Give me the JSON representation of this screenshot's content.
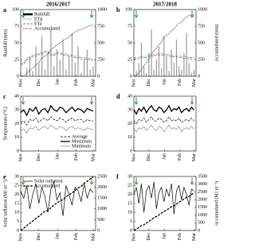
{
  "chart_data": [
    {
      "type": "combo",
      "label": "a",
      "title": "2016/2017",
      "ylabel": "Rainfall (mm)",
      "legend": "upper left",
      "x": [
        0,
        5,
        10,
        15,
        20,
        25,
        30,
        35,
        40,
        45,
        50,
        55,
        60,
        65,
        70,
        75,
        80,
        85,
        90,
        95,
        100,
        105,
        110,
        115,
        120
      ],
      "xlim": [
        0,
        124
      ],
      "xticks": [
        {
          "value": 0,
          "label": "Nov"
        },
        {
          "value": 30,
          "label": "Dec"
        },
        {
          "value": 61,
          "label": "Jan"
        },
        {
          "value": 92,
          "label": "Feb"
        },
        {
          "value": 120,
          "label": "Mar"
        }
      ],
      "ylim": [
        0,
        100
      ],
      "yticks": [
        0,
        25,
        50,
        75,
        100
      ],
      "y2lim": [
        0,
        1000
      ],
      "y2ticks": [
        0,
        250,
        500,
        750,
        1000
      ],
      "series": [
        {
          "name": "Rainfall",
          "mark": "bar",
          "color": "#9a9a9a",
          "values": [
            5,
            0,
            12,
            30,
            8,
            45,
            20,
            60,
            10,
            35,
            70,
            15,
            40,
            25,
            55,
            10,
            30,
            65,
            20,
            45,
            5,
            25,
            40,
            10,
            15
          ]
        },
        {
          "name": "ETp",
          "mark": "line",
          "color": "#3a9e9e",
          "dash": "3 1 1 1",
          "values": [
            20,
            20,
            28,
            28,
            32,
            32,
            35,
            35,
            38,
            38,
            33,
            33,
            36,
            36,
            34,
            34,
            32,
            32,
            30,
            30,
            28,
            28,
            27,
            27,
            26
          ]
        },
        {
          "name": "ETa",
          "mark": "line",
          "color": "#d9261c",
          "dash": "3 1.5",
          "values": [
            18,
            18,
            25,
            25,
            30,
            30,
            33,
            33,
            36,
            36,
            31,
            31,
            34,
            34,
            32,
            32,
            30,
            30,
            28,
            28,
            26,
            26,
            25,
            25,
            24
          ]
        },
        {
          "name": "Accumulated",
          "mark": "line",
          "color": "#000000",
          "dash": "1 1",
          "axis": "y2",
          "values": [
            0,
            10,
            40,
            90,
            120,
            170,
            210,
            270,
            300,
            340,
            400,
            430,
            470,
            500,
            540,
            560,
            590,
            630,
            660,
            690,
            700,
            720,
            745,
            760,
            770
          ]
        }
      ]
    },
    {
      "type": "combo",
      "label": "b",
      "title": "2017/2018",
      "y2label": "Accumulated (mm)",
      "x": [
        0,
        5,
        10,
        15,
        20,
        25,
        30,
        35,
        40,
        45,
        50,
        55,
        60,
        65,
        70,
        75,
        80,
        85,
        90,
        95,
        100,
        105,
        110,
        115,
        120
      ],
      "xlim": [
        0,
        124
      ],
      "xticks": [
        {
          "value": 0,
          "label": "Nov"
        },
        {
          "value": 30,
          "label": "Dec"
        },
        {
          "value": 61,
          "label": "Jan"
        },
        {
          "value": 92,
          "label": "Feb"
        },
        {
          "value": 120,
          "label": "Mar"
        }
      ],
      "ylim": [
        0,
        100
      ],
      "yticks": [
        0,
        25,
        50,
        75,
        100
      ],
      "y2lim": [
        0,
        1000
      ],
      "y2ticks": [
        0,
        250,
        500,
        750,
        1000
      ],
      "series": [
        {
          "mark": "bar",
          "color": "#9a9a9a",
          "values": [
            0,
            8,
            20,
            50,
            15,
            5,
            35,
            70,
            10,
            25,
            45,
            12,
            60,
            30,
            8,
            40,
            20,
            55,
            15,
            10,
            35,
            65,
            20,
            5,
            10
          ]
        },
        {
          "mark": "line",
          "color": "#3a9e9e",
          "dash": "3 1 1 1",
          "values": [
            28,
            28,
            28,
            30,
            30,
            30,
            32,
            32,
            32,
            34,
            34,
            34,
            33,
            33,
            33,
            31,
            31,
            31,
            30,
            30,
            29,
            29,
            28,
            28,
            28
          ]
        },
        {
          "mark": "line",
          "color": "#d9261c",
          "dash": "3 1.5",
          "values": [
            26,
            26,
            26,
            28,
            28,
            28,
            30,
            30,
            30,
            32,
            32,
            32,
            31,
            31,
            31,
            29,
            29,
            29,
            28,
            28,
            27,
            27,
            26,
            26,
            26
          ]
        },
        {
          "mark": "line",
          "color": "#000000",
          "dash": "1 1",
          "axis": "y2",
          "values": [
            0,
            15,
            50,
            110,
            160,
            200,
            260,
            340,
            380,
            420,
            480,
            510,
            580,
            620,
            640,
            680,
            710,
            760,
            790,
            810,
            850,
            890,
            910,
            920,
            930
          ]
        }
      ]
    },
    {
      "type": "line",
      "label": "c",
      "ylabel": "Temperature (°C)",
      "legend": "lower right",
      "x": [
        0,
        5,
        10,
        15,
        20,
        25,
        30,
        35,
        40,
        45,
        50,
        55,
        60,
        65,
        70,
        75,
        80,
        85,
        90,
        95,
        100,
        105,
        110,
        115,
        120
      ],
      "xlim": [
        0,
        124
      ],
      "xticks": [
        {
          "value": 0,
          "label": "Nov"
        },
        {
          "value": 30,
          "label": "Dec"
        },
        {
          "value": 61,
          "label": "Jan"
        },
        {
          "value": 92,
          "label": "Feb"
        },
        {
          "value": 120,
          "label": "Mar"
        }
      ],
      "ylim": [
        0,
        40
      ],
      "yticks": [
        0,
        10,
        20,
        30,
        40
      ],
      "series": [
        {
          "name": "Average",
          "mark": "line",
          "color": "#000000",
          "dash": "3 1.5",
          "values": [
            21,
            22,
            19,
            23,
            22,
            24,
            21,
            23,
            24,
            22,
            25,
            23,
            22,
            24,
            23,
            21,
            23,
            24,
            22,
            23,
            23,
            21,
            23,
            22,
            22
          ]
        },
        {
          "name": "Maximum",
          "mark": "line",
          "color": "#000000",
          "width": 1.3,
          "values": [
            28,
            30,
            26,
            31,
            29,
            32,
            27,
            30,
            31,
            28,
            33,
            30,
            29,
            32,
            31,
            28,
            30,
            32,
            29,
            31,
            30,
            28,
            31,
            30,
            29
          ]
        },
        {
          "name": "Minimum",
          "mark": "line",
          "color": "#8a8a8a",
          "values": [
            15,
            16,
            13,
            17,
            16,
            18,
            15,
            17,
            18,
            16,
            19,
            17,
            16,
            18,
            17,
            15,
            17,
            18,
            16,
            17,
            16,
            15,
            17,
            16,
            16
          ]
        }
      ]
    },
    {
      "type": "line",
      "label": "d",
      "x": [
        0,
        5,
        10,
        15,
        20,
        25,
        30,
        35,
        40,
        45,
        50,
        55,
        60,
        65,
        70,
        75,
        80,
        85,
        90,
        95,
        100,
        105,
        110,
        115,
        120
      ],
      "xlim": [
        0,
        124
      ],
      "xticks": [
        {
          "value": 0,
          "label": "Nov"
        },
        {
          "value": 30,
          "label": "Dec"
        },
        {
          "value": 61,
          "label": "Jan"
        },
        {
          "value": 92,
          "label": "Feb"
        },
        {
          "value": 120,
          "label": "Mar"
        }
      ],
      "ylim": [
        0,
        40
      ],
      "yticks": [
        0,
        10,
        20,
        30,
        40
      ],
      "series": [
        {
          "mark": "line",
          "color": "#000000",
          "dash": "3 1.5",
          "values": [
            22,
            20,
            23,
            22,
            24,
            21,
            23,
            25,
            22,
            22,
            24,
            23,
            21,
            22,
            25,
            22,
            23,
            22,
            24,
            21,
            22,
            23,
            22,
            24,
            22
          ]
        },
        {
          "mark": "line",
          "color": "#000000",
          "width": 1.3,
          "values": [
            30,
            27,
            31,
            29,
            32,
            28,
            31,
            33,
            30,
            29,
            32,
            31,
            28,
            30,
            33,
            29,
            31,
            30,
            32,
            28,
            30,
            31,
            29,
            32,
            30
          ]
        },
        {
          "mark": "line",
          "color": "#8a8a8a",
          "values": [
            16,
            14,
            17,
            16,
            18,
            15,
            17,
            19,
            16,
            15,
            18,
            17,
            14,
            16,
            19,
            16,
            17,
            16,
            18,
            14,
            16,
            17,
            16,
            18,
            16
          ]
        }
      ]
    },
    {
      "type": "combo",
      "label": "e",
      "ylabel": "Solar radiation (MJ m⁻²)",
      "legend": "upper left",
      "x": [
        0,
        5,
        10,
        15,
        20,
        25,
        30,
        35,
        40,
        45,
        50,
        55,
        60,
        65,
        70,
        75,
        80,
        85,
        90,
        95,
        100,
        105,
        110,
        115,
        120
      ],
      "xlim": [
        0,
        124
      ],
      "xticks": [
        {
          "value": 0,
          "label": "Nov"
        },
        {
          "value": 30,
          "label": "Dec"
        },
        {
          "value": 61,
          "label": "Jan"
        },
        {
          "value": 92,
          "label": "Feb"
        },
        {
          "value": 120,
          "label": "Mar"
        }
      ],
      "ylim": [
        0,
        30
      ],
      "yticks": [
        0,
        5,
        10,
        15,
        20,
        25,
        30
      ],
      "y2lim": [
        0,
        2500
      ],
      "y2ticks": [
        0,
        500,
        1000,
        1500,
        2000,
        2500
      ],
      "series": [
        {
          "name": "Solar radiation",
          "mark": "line",
          "color": "#000000",
          "values": [
            22,
            18,
            25,
            12,
            20,
            26,
            15,
            24,
            19,
            10,
            23,
            27,
            17,
            21,
            8,
            25,
            20,
            14,
            24,
            22,
            16,
            26,
            18,
            23,
            21
          ]
        },
        {
          "name": "Accumulated",
          "mark": "line",
          "color": "#000000",
          "dash": "3 1.5",
          "width": 1.3,
          "axis": "y2",
          "values": [
            0,
            100,
            230,
            330,
            440,
            560,
            650,
            780,
            880,
            930,
            1050,
            1190,
            1270,
            1380,
            1420,
            1560,
            1660,
            1730,
            1860,
            1970,
            2050,
            2180,
            2270,
            2390,
            2480
          ]
        }
      ]
    },
    {
      "type": "combo",
      "label": "f",
      "y2label": "Accumulated (MJ m⁻²)",
      "x": [
        0,
        5,
        10,
        15,
        20,
        25,
        30,
        35,
        40,
        45,
        50,
        55,
        60,
        65,
        70,
        75,
        80,
        85,
        90,
        95,
        100,
        105,
        110,
        115,
        120
      ],
      "xlim": [
        0,
        124
      ],
      "xticks": [
        {
          "value": 0,
          "label": "Nov"
        },
        {
          "value": 30,
          "label": "Dec"
        },
        {
          "value": 61,
          "label": "Jan"
        },
        {
          "value": 92,
          "label": "Feb"
        },
        {
          "value": 120,
          "label": "Mar"
        }
      ],
      "ylim": [
        0,
        30
      ],
      "yticks": [
        0,
        5,
        10,
        15,
        20,
        25,
        30
      ],
      "y2lim": [
        0,
        3500
      ],
      "y2ticks": [
        0,
        500,
        1000,
        1500,
        2000,
        2500,
        3000,
        3500
      ],
      "series": [
        {
          "mark": "line",
          "color": "#000000",
          "values": [
            20,
            24,
            15,
            26,
            10,
            22,
            25,
            18,
            27,
            12,
            21,
            24,
            16,
            23,
            19,
            26,
            9,
            22,
            25,
            17,
            24,
            20,
            14,
            23,
            22
          ]
        },
        {
          "mark": "line",
          "color": "#000000",
          "dash": "3 1.5",
          "width": 1.3,
          "axis": "y2",
          "values": [
            0,
            110,
            190,
            320,
            370,
            480,
            610,
            700,
            840,
            900,
            1010,
            1130,
            1210,
            1330,
            1420,
            1550,
            1600,
            1710,
            1840,
            1920,
            2040,
            2140,
            2210,
            2330,
            2440
          ]
        }
      ]
    }
  ]
}
